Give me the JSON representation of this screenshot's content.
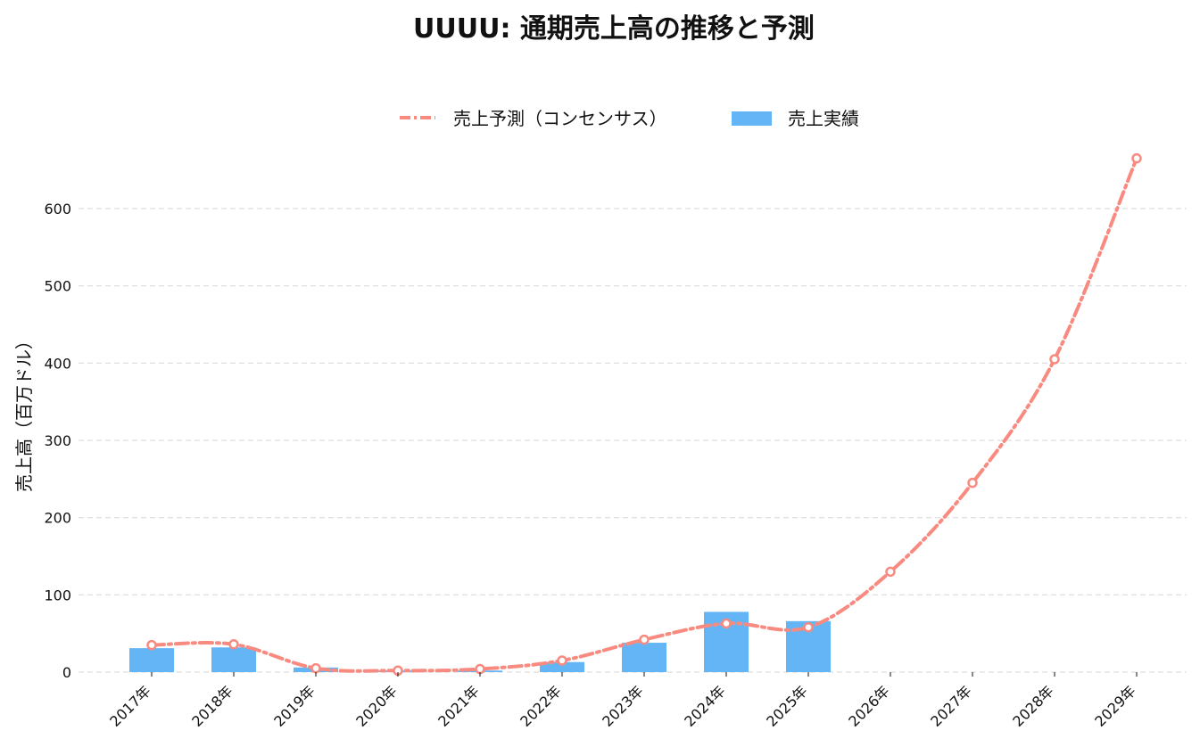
{
  "chart_data": {
    "type": "bar",
    "title": "UUUU: 通期売上高の推移と予測",
    "ylabel": "売上高（百万ドル）",
    "xlabel": "",
    "ylim": [
      0,
      670
    ],
    "yticks": [
      0,
      100,
      200,
      300,
      400,
      500,
      600
    ],
    "grid": true,
    "legend_position": "top-center",
    "categories": [
      "2017年",
      "2018年",
      "2019年",
      "2020年",
      "2021年",
      "2022年",
      "2023年",
      "2024年",
      "2025年",
      "2026年",
      "2027年",
      "2028年",
      "2029年"
    ],
    "series": [
      {
        "name": "売上予測（コンセンサス）",
        "type": "line",
        "style": "dashdot",
        "color": "#F88A80",
        "values": [
          35,
          36,
          5,
          2,
          4,
          15,
          42,
          63,
          58,
          130,
          245,
          405,
          665
        ]
      },
      {
        "name": "売上実績",
        "type": "bar",
        "color": "#64B5F6",
        "values": [
          31,
          32,
          6,
          2,
          2,
          13,
          38,
          78,
          66,
          null,
          null,
          null,
          null
        ]
      }
    ]
  }
}
